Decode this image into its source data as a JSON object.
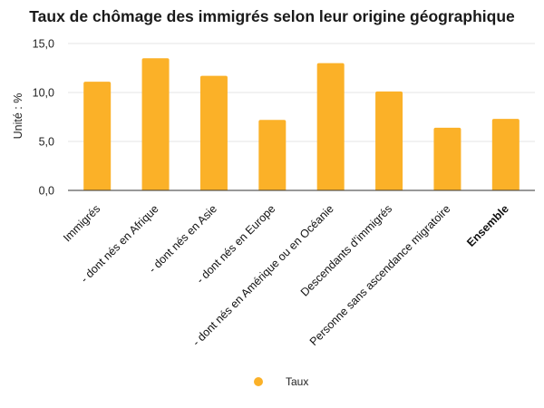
{
  "chart_data": {
    "type": "bar",
    "title": "Taux de chômage des immigrés selon leur origine géographique",
    "ylabel": "Unité : %",
    "xlabel": "",
    "categories": [
      "Immigrés",
      "- dont nés en Afrique",
      "- dont nés en Asie",
      "- dont nés en Europe",
      "- dont nés en Amérique ou en Océanie",
      "Descendants d'immigrés",
      "Personne sans ascendance migratoire",
      "Ensemble"
    ],
    "bold_categories": [
      "Ensemble"
    ],
    "series": [
      {
        "name": "Taux",
        "values": [
          11.1,
          13.5,
          11.7,
          7.2,
          13.0,
          10.1,
          6.4,
          7.3
        ],
        "color": "#fbb128"
      }
    ],
    "y_ticks": [
      "0,0",
      "5,0",
      "10,0",
      "15,0"
    ],
    "y_tick_values": [
      0,
      5,
      10,
      15
    ],
    "ylim": [
      0,
      15
    ],
    "grid": true,
    "legend": {
      "position": "bottom-center"
    }
  }
}
